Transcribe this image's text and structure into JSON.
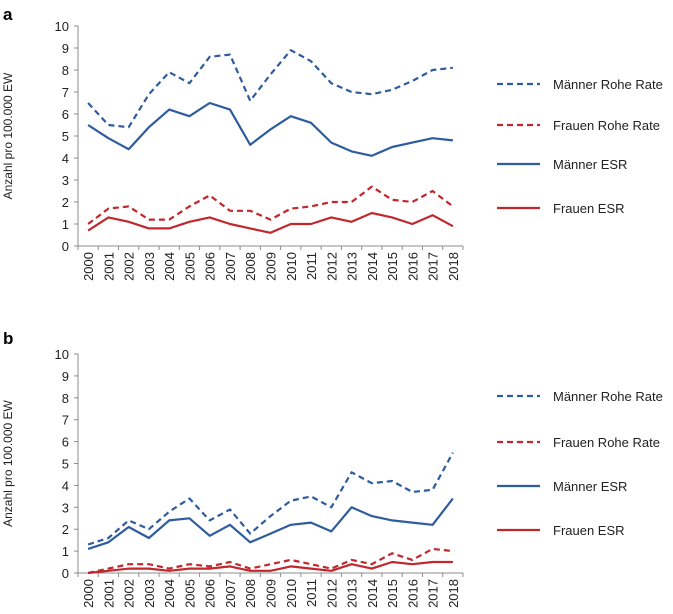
{
  "chart_data": [
    {
      "type": "line",
      "panel_label": "a",
      "ylabel": "Anzahl pro 100.000 EW",
      "xlabel": "",
      "ylim": [
        0,
        10
      ],
      "yticks": [
        "0",
        "1",
        "2",
        "3",
        "4",
        "5",
        "6",
        "7",
        "8",
        "9",
        "10"
      ],
      "grid": false,
      "legend_position": "right",
      "categories": [
        "2000",
        "2001",
        "2002",
        "2003",
        "2004",
        "2005",
        "2006",
        "2007",
        "2008",
        "2009",
        "2010",
        "2011",
        "2012",
        "2013",
        "2014",
        "2015",
        "2016",
        "2017",
        "2018"
      ],
      "series": [
        {
          "name": "Männer Rohe Rate",
          "color": "#2e5c9e",
          "style": "dashed",
          "values": [
            6.5,
            5.5,
            5.4,
            6.9,
            7.9,
            7.4,
            8.6,
            8.7,
            6.6,
            7.8,
            8.9,
            8.4,
            7.4,
            7.0,
            6.9,
            7.1,
            7.5,
            8.0,
            8.1
          ]
        },
        {
          "name": "Frauen Rohe Rate",
          "color": "#c0282e",
          "style": "dashed",
          "values": [
            1.0,
            1.7,
            1.8,
            1.2,
            1.2,
            1.8,
            2.3,
            1.6,
            1.6,
            1.2,
            1.7,
            1.8,
            2.0,
            2.0,
            2.7,
            2.1,
            2.0,
            2.5,
            1.8
          ]
        },
        {
          "name": "Männer ESR",
          "color": "#2e5c9e",
          "style": "solid",
          "values": [
            5.5,
            4.9,
            4.4,
            5.4,
            6.2,
            5.9,
            6.5,
            6.2,
            4.6,
            5.3,
            5.9,
            5.6,
            4.7,
            4.3,
            4.1,
            4.5,
            4.7,
            4.9,
            4.8
          ]
        },
        {
          "name": "Frauen ESR",
          "color": "#c0282e",
          "style": "solid",
          "values": [
            0.7,
            1.3,
            1.1,
            0.8,
            0.8,
            1.1,
            1.3,
            1.0,
            0.8,
            0.6,
            1.0,
            1.0,
            1.3,
            1.1,
            1.5,
            1.3,
            1.0,
            1.4,
            0.9
          ]
        }
      ]
    },
    {
      "type": "line",
      "panel_label": "b",
      "ylabel": "Anzahl pro 100.000 EW",
      "xlabel": "",
      "ylim": [
        0,
        10
      ],
      "yticks": [
        "0",
        "1",
        "2",
        "3",
        "4",
        "5",
        "6",
        "7",
        "8",
        "9",
        "10"
      ],
      "grid": false,
      "legend_position": "right",
      "categories": [
        "2000",
        "2001",
        "2002",
        "2003",
        "2004",
        "2005",
        "2006",
        "2007",
        "2008",
        "2009",
        "2010",
        "2011",
        "2012",
        "2013",
        "2014",
        "2015",
        "2016",
        "2017",
        "2018"
      ],
      "series": [
        {
          "name": "Männer Rohe Rate",
          "color": "#2e5c9e",
          "style": "dashed",
          "values": [
            1.3,
            1.6,
            2.4,
            2.0,
            2.8,
            3.4,
            2.4,
            2.9,
            1.8,
            2.6,
            3.3,
            3.5,
            3.0,
            4.6,
            4.1,
            4.2,
            3.7,
            3.8,
            5.5
          ]
        },
        {
          "name": "Frauen Rohe Rate",
          "color": "#c0282e",
          "style": "dashed",
          "values": [
            0.0,
            0.2,
            0.4,
            0.4,
            0.2,
            0.4,
            0.3,
            0.5,
            0.2,
            0.4,
            0.6,
            0.4,
            0.2,
            0.6,
            0.4,
            0.9,
            0.6,
            1.1,
            1.0
          ]
        },
        {
          "name": "Männer ESR",
          "color": "#2e5c9e",
          "style": "solid",
          "values": [
            1.1,
            1.4,
            2.1,
            1.6,
            2.4,
            2.5,
            1.7,
            2.2,
            1.4,
            1.8,
            2.2,
            2.3,
            1.9,
            3.0,
            2.6,
            2.4,
            2.3,
            2.2,
            3.4
          ]
        },
        {
          "name": "Frauen ESR",
          "color": "#c0282e",
          "style": "solid",
          "values": [
            0.0,
            0.1,
            0.2,
            0.2,
            0.1,
            0.2,
            0.2,
            0.3,
            0.1,
            0.1,
            0.3,
            0.2,
            0.1,
            0.4,
            0.2,
            0.5,
            0.4,
            0.5,
            0.5
          ]
        }
      ]
    }
  ]
}
